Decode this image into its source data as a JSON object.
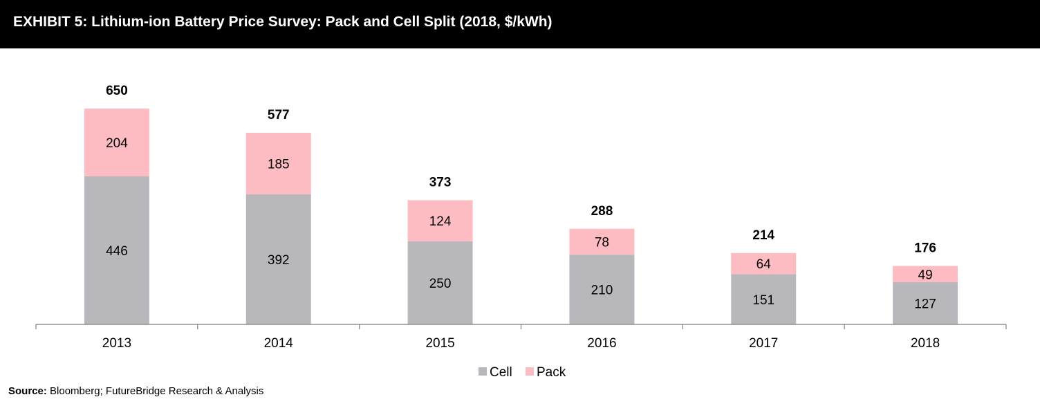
{
  "header": {
    "title": "EXHIBIT 5: Lithium-ion Battery Price Survey: Pack and Cell Split (2018, $/kWh)"
  },
  "chart_data": {
    "type": "bar",
    "stacked": true,
    "categories": [
      "2013",
      "2014",
      "2015",
      "2016",
      "2017",
      "2018"
    ],
    "series": [
      {
        "name": "Cell",
        "color": "#b8b7bb",
        "values": [
          446,
          392,
          250,
          210,
          151,
          127
        ]
      },
      {
        "name": "Pack",
        "color": "#fcbcc1",
        "values": [
          204,
          185,
          124,
          78,
          64,
          49
        ]
      }
    ],
    "totals": [
      650,
      577,
      373,
      288,
      214,
      176
    ],
    "ylim": [
      0,
      650
    ],
    "grid": false,
    "legend": "bottom-center",
    "xlabel": "",
    "ylabel": ""
  },
  "footer": {
    "source_label": "Source:",
    "source_text": " Bloomberg; FutureBridge Research & Analysis"
  }
}
